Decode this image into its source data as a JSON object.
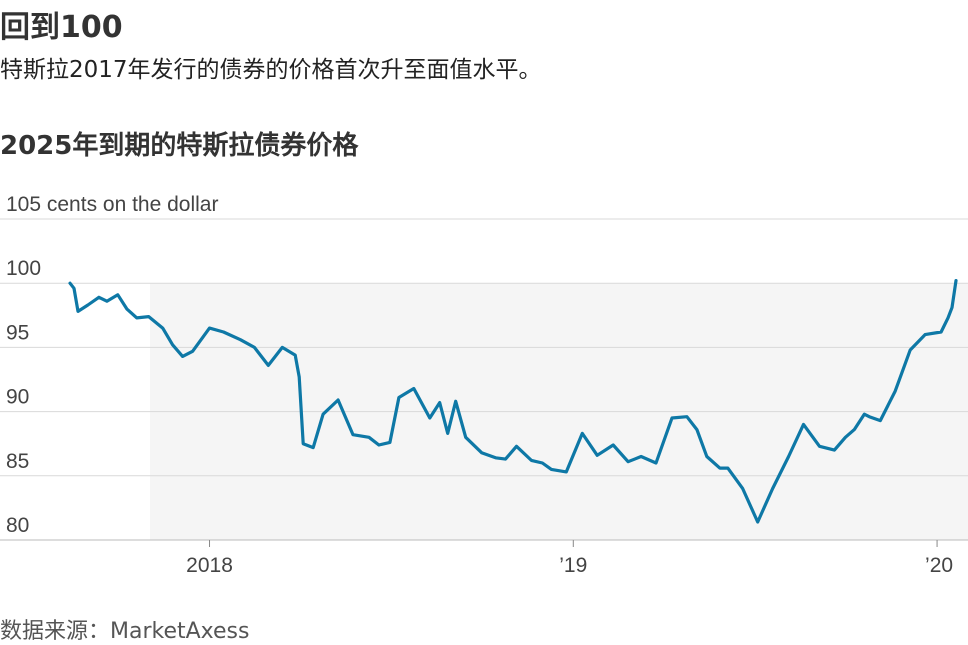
{
  "header": {
    "headline": "回到100",
    "dek": "特斯拉2017年发行的债券的价格首次升至面值水平。"
  },
  "chart_title": "2025年到期的特斯拉债券价格",
  "source": "数据来源：MarketAxess",
  "colors": {
    "line": "#0e78a6",
    "grid": "#d9d9d9",
    "baseline": "#bbbbbb",
    "shade": "#f5f5f5"
  },
  "chart_data": {
    "type": "line",
    "title": "2025年到期的特斯拉债券价格",
    "ylabel": "105 cents on the dollar",
    "ylim": [
      80,
      105
    ],
    "y_ticks": [
      {
        "value": 105,
        "label": "105 cents on the dollar"
      },
      {
        "value": 100,
        "label": "100"
      },
      {
        "value": 95,
        "label": "95"
      },
      {
        "value": 90,
        "label": "90"
      },
      {
        "value": 85,
        "label": "85"
      },
      {
        "value": 80,
        "label": "80"
      }
    ],
    "xlim": [
      "2017-08-10",
      "2020-01-22"
    ],
    "x_ticks": [
      {
        "value": "2018-01-01",
        "label": "2018"
      },
      {
        "value": "2019-01-01",
        "label": "’19"
      },
      {
        "value": "2020-01-01",
        "label": "’20"
      }
    ],
    "grid": true,
    "series": [
      {
        "x": [
          "2017-08-14",
          "2017-08-18",
          "2017-08-22",
          "2017-09-01",
          "2017-09-12",
          "2017-09-20",
          "2017-10-01",
          "2017-10-10",
          "2017-10-20",
          "2017-11-01",
          "2017-11-15",
          "2017-11-25",
          "2017-12-05",
          "2017-12-15",
          "2018-01-01",
          "2018-01-15",
          "2018-02-01",
          "2018-02-15",
          "2018-03-01",
          "2018-03-15",
          "2018-03-28",
          "2018-04-01",
          "2018-04-05",
          "2018-04-15",
          "2018-04-25",
          "2018-05-10",
          "2018-05-25",
          "2018-06-10",
          "2018-06-20",
          "2018-07-01",
          "2018-07-10",
          "2018-07-25",
          "2018-08-10",
          "2018-08-20",
          "2018-08-28",
          "2018-09-05",
          "2018-09-15",
          "2018-10-01",
          "2018-10-15",
          "2018-10-25",
          "2018-11-05",
          "2018-11-20",
          "2018-12-01",
          "2018-12-10",
          "2018-12-25",
          "2019-01-10",
          "2019-01-25",
          "2019-02-10",
          "2019-02-25",
          "2019-03-10",
          "2019-03-25",
          "2019-04-10",
          "2019-04-25",
          "2019-05-05",
          "2019-05-15",
          "2019-05-28",
          "2019-06-05",
          "2019-06-20",
          "2019-07-05",
          "2019-07-20",
          "2019-08-05",
          "2019-08-20",
          "2019-09-05",
          "2019-09-20",
          "2019-10-01",
          "2019-10-10",
          "2019-10-20",
          "2019-10-25",
          "2019-11-05",
          "2019-11-20",
          "2019-12-05",
          "2019-12-20",
          "2020-01-05",
          "2020-01-12",
          "2020-01-16",
          "2020-01-20"
        ],
        "values": [
          100,
          99.6,
          97.8,
          98.3,
          98.9,
          98.6,
          99.1,
          98.0,
          97.3,
          97.4,
          96.5,
          95.2,
          94.3,
          94.7,
          96.5,
          96.2,
          95.6,
          95.0,
          93.6,
          95.0,
          94.4,
          92.7,
          87.5,
          87.2,
          89.8,
          90.9,
          88.2,
          88.0,
          87.4,
          87.6,
          91.1,
          91.8,
          89.5,
          90.7,
          88.3,
          90.8,
          88.0,
          86.8,
          86.4,
          86.3,
          87.3,
          86.2,
          86.0,
          85.5,
          85.3,
          88.3,
          86.6,
          87.4,
          86.1,
          86.5,
          86.0,
          89.5,
          89.6,
          88.6,
          86.5,
          85.6,
          85.6,
          84.0,
          81.4,
          84.0,
          86.5,
          89.0,
          87.3,
          87.0,
          88.0,
          88.6,
          89.8,
          89.6,
          89.3,
          91.6,
          94.8,
          96.0,
          96.2,
          97.3,
          98.1,
          100.2
        ]
      }
    ]
  }
}
